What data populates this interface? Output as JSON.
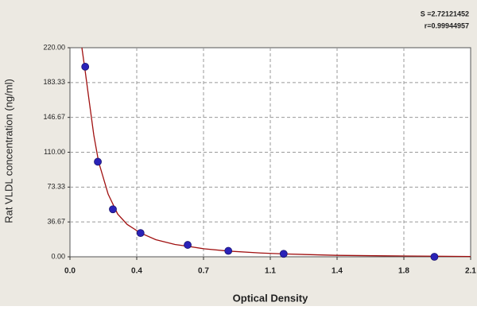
{
  "chart_data": {
    "type": "scatter",
    "annotations": [
      "S =2.72121452",
      "r=0.99944957"
    ],
    "xlabel": "Optical Density",
    "ylabel": "Rat VLDL concentration (ng/ml)",
    "xlim": [
      0,
      2.1
    ],
    "xticks": [
      {
        "value": 0,
        "label": "0.0"
      },
      {
        "value": 0.35,
        "label": "0.4"
      },
      {
        "value": 0.7,
        "label": "0.7"
      },
      {
        "value": 1.05,
        "label": "1.1"
      },
      {
        "value": 1.4,
        "label": "1.4"
      },
      {
        "value": 1.75,
        "label": "1.8"
      },
      {
        "value": 2.1,
        "label": "2.1"
      }
    ],
    "ylim": [
      0,
      220
    ],
    "yticks": [
      {
        "value": 0,
        "label": "0.00"
      },
      {
        "value": 36.67,
        "label": "36.67"
      },
      {
        "value": 73.33,
        "label": "73.33"
      },
      {
        "value": 110,
        "label": "110.00"
      },
      {
        "value": 146.67,
        "label": "146.67"
      },
      {
        "value": 183.33,
        "label": "183.33"
      },
      {
        "value": 220,
        "label": "220.00"
      }
    ],
    "grid": true,
    "series": [
      {
        "kind": "points",
        "color": "#2a22b8",
        "x": [
          0.08,
          0.146,
          0.225,
          0.37,
          0.617,
          0.83,
          1.12,
          1.91
        ],
        "values": [
          200,
          100,
          50,
          25,
          12.5,
          6.25,
          3.125,
          0
        ]
      },
      {
        "kind": "curve",
        "color": "#a01010",
        "x": [
          0.0625,
          0.08,
          0.1,
          0.125,
          0.15,
          0.2,
          0.25,
          0.3,
          0.37,
          0.45,
          0.55,
          0.62,
          0.7,
          0.83,
          1.0,
          1.12,
          1.4,
          1.65,
          1.9,
          2.1
        ],
        "values": [
          220,
          195,
          165,
          128,
          100,
          66,
          45,
          34,
          25,
          18,
          13,
          11,
          8.5,
          6,
          4,
          3,
          1.5,
          1,
          0.6,
          0.3
        ]
      }
    ]
  }
}
